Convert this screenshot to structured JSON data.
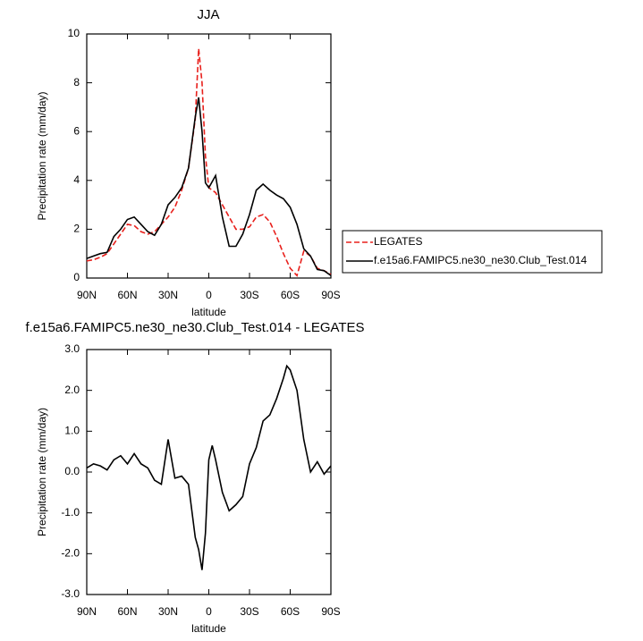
{
  "chart_data": [
    {
      "type": "line",
      "title": "JJA",
      "x_label": "latitude",
      "y_label": "Precipitation rate (mm/day)",
      "x": [
        90,
        85,
        80,
        75,
        70,
        65,
        60,
        55,
        50,
        45,
        40,
        35,
        30,
        25,
        20,
        15,
        10,
        7.5,
        5,
        2.5,
        0,
        -5,
        -10,
        -15,
        -20,
        -25,
        -30,
        -35,
        -40,
        -45,
        -50,
        -55,
        -60,
        -65,
        -70,
        -75,
        -80,
        -85,
        -90
      ],
      "series": [
        {
          "name": "LEGATES",
          "color": "#e8201c",
          "line_style": "dashed",
          "values": [
            0.7,
            0.75,
            0.85,
            1.0,
            1.4,
            1.8,
            2.2,
            2.15,
            1.9,
            1.8,
            1.9,
            2.2,
            2.5,
            2.9,
            3.6,
            4.5,
            6.5,
            9.4,
            8.0,
            5.0,
            3.7,
            3.5,
            3.0,
            2.5,
            2.0,
            2.0,
            2.1,
            2.5,
            2.6,
            2.3,
            1.7,
            1.0,
            0.4,
            0.1,
            1.1,
            0.9,
            0.4,
            0.3,
            0.15
          ]
        },
        {
          "name": "f.e15a6.FAMIPC5.ne30_ne30.Club_Test.014",
          "color": "#000000",
          "line_style": "solid",
          "values": [
            0.8,
            0.9,
            1.0,
            1.05,
            1.7,
            2.0,
            2.4,
            2.5,
            2.2,
            1.9,
            1.75,
            2.2,
            3.0,
            3.3,
            3.7,
            4.5,
            6.6,
            7.4,
            6.0,
            3.9,
            3.7,
            4.2,
            2.5,
            1.3,
            1.3,
            1.8,
            2.6,
            3.6,
            3.85,
            3.6,
            3.4,
            3.25,
            2.9,
            2.2,
            1.2,
            0.9,
            0.35,
            0.3,
            0.1
          ]
        }
      ],
      "xlim": [
        90,
        -90
      ],
      "xticks": [
        {
          "value": 90,
          "label": "90N"
        },
        {
          "value": 60,
          "label": "60N"
        },
        {
          "value": 30,
          "label": "30N"
        },
        0,
        {
          "value": -30,
          "label": "30S"
        },
        {
          "value": -60,
          "label": "60S"
        },
        {
          "value": -90,
          "label": "90S"
        }
      ],
      "ylim": [
        0,
        10
      ],
      "yticks": [
        0,
        2,
        4,
        6,
        8,
        10
      ],
      "legend": "outside-right"
    },
    {
      "type": "line",
      "title": "f.e15a6.FAMIPC5.ne30_ne30.Club_Test.014 - LEGATES",
      "x_label": "latitude",
      "y_label": "Precipitation rate (mm/day)",
      "x": [
        90,
        85,
        80,
        75,
        70,
        65,
        60,
        55,
        50,
        45,
        40,
        35,
        30,
        25,
        20,
        15,
        10,
        7.5,
        5,
        2.5,
        0,
        -2.5,
        -5,
        -10,
        -15,
        -20,
        -25,
        -30,
        -35,
        -40,
        -45,
        -50,
        -55,
        -57.5,
        -60,
        -65,
        -70,
        -75,
        -80,
        -85,
        -90
      ],
      "series": [
        {
          "color": "#000000",
          "line_style": "solid",
          "values": [
            0.1,
            0.2,
            0.15,
            0.05,
            0.3,
            0.4,
            0.2,
            0.45,
            0.2,
            0.1,
            -0.2,
            -0.3,
            0.8,
            -0.15,
            -0.1,
            -0.3,
            -1.6,
            -1.9,
            -2.4,
            -1.5,
            0.3,
            0.65,
            0.3,
            -0.5,
            -0.95,
            -0.8,
            -0.6,
            0.2,
            0.6,
            1.25,
            1.4,
            1.8,
            2.3,
            2.6,
            2.5,
            2.0,
            0.8,
            0.0,
            0.25,
            -0.05,
            0.15
          ]
        }
      ],
      "xlim": [
        90,
        -90
      ],
      "xticks": [
        {
          "value": 90,
          "label": "90N"
        },
        {
          "value": 60,
          "label": "60N"
        },
        {
          "value": 30,
          "label": "30N"
        },
        0,
        {
          "value": -30,
          "label": "30S"
        },
        {
          "value": -60,
          "label": "60S"
        },
        {
          "value": -90,
          "label": "90S"
        }
      ],
      "ylim": [
        -3,
        3
      ],
      "yticks": [
        {
          "value": -3,
          "label": "-3.0"
        },
        {
          "value": -2,
          "label": "-2.0"
        },
        {
          "value": -1,
          "label": "-1.0"
        },
        {
          "value": 0,
          "label": "0.0"
        },
        {
          "value": 1,
          "label": "1.0"
        },
        {
          "value": 2,
          "label": "2.0"
        },
        {
          "value": 3,
          "label": "3.0"
        }
      ]
    }
  ]
}
